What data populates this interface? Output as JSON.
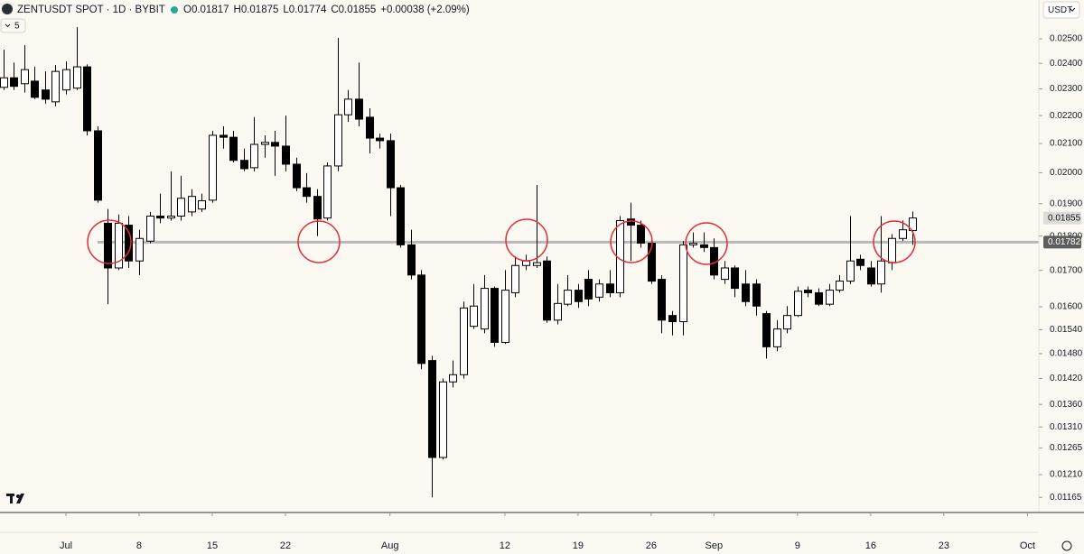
{
  "chart_data": {
    "type": "candlestick",
    "title": "ZENTUSDT SPOT · 1D · BYBIT",
    "ohlc_labels": [
      "O0.01817",
      "H0.01875",
      "L0.01774",
      "C0.01855",
      "+0.00038 (+2.09%)"
    ],
    "interval_badge": "5",
    "currency": "USDT",
    "log_scale": true,
    "grid": false,
    "up_color": "#ffffff",
    "down_color": "#000000",
    "x": [
      0,
      1,
      2,
      3,
      4,
      5,
      6,
      7,
      8,
      9,
      10,
      11,
      12,
      13,
      14,
      15,
      16,
      17,
      18,
      19,
      20,
      21,
      22,
      23,
      24,
      25,
      26,
      27,
      28,
      29,
      30,
      31,
      32,
      33,
      34,
      35,
      36,
      37,
      38,
      39,
      40,
      41,
      42,
      43,
      44,
      45,
      46,
      47,
      48,
      49,
      50,
      51,
      52,
      53,
      54,
      55,
      56,
      57,
      58,
      59,
      60,
      61,
      62,
      63,
      64,
      65,
      66,
      67,
      68,
      69,
      70,
      71,
      72,
      73,
      74,
      75,
      76,
      77,
      78,
      79,
      80,
      81,
      82,
      83,
      84,
      85,
      86,
      87
    ],
    "open": [
      0.02306,
      0.02343,
      0.0232,
      0.0233,
      0.02296,
      0.02251,
      0.02296,
      0.02303,
      0.02386,
      0.02145,
      0.01839,
      0.01707,
      0.01833,
      0.01727,
      0.01785,
      0.01861,
      0.01855,
      0.01861,
      0.01874,
      0.01883,
      0.01911,
      0.02129,
      0.02122,
      0.02042,
      0.02017,
      0.02097,
      0.02104,
      0.02091,
      0.02029,
      0.01951,
      0.01923,
      0.01855,
      0.02023,
      0.02203,
      0.02261,
      0.02194,
      0.02119,
      0.0211,
      0.01951,
      0.01774,
      0.01687,
      0.01463,
      0.01245,
      0.01412,
      0.01429,
      0.01549,
      0.01542,
      0.0165,
      0.01508,
      0.01638,
      0.01714,
      0.01714,
      0.01727,
      0.01565,
      0.01607,
      0.01645,
      0.01675,
      0.01626,
      0.01662,
      0.01638,
      0.01852,
      0.01833,
      0.01779,
      0.01675,
      0.01577,
      0.01561,
      0.01774,
      0.01774,
      0.01766,
      0.01675,
      0.01707,
      0.01662,
      0.01662,
      0.01582,
      0.01497,
      0.01542,
      0.01577,
      0.01645,
      0.01638,
      0.01607,
      0.01645,
      0.0167,
      0.01732,
      0.01707,
      0.01662,
      0.01722,
      0.01793,
      0.01817
    ],
    "high": [
      0.02455,
      0.02403,
      0.02474,
      0.02386,
      0.02368,
      0.02393,
      0.02408,
      0.02549,
      0.02396,
      0.02161,
      0.01883,
      0.01866,
      0.01861,
      0.01819,
      0.01874,
      0.01932,
      0.02005,
      0.0199,
      0.01946,
      0.01932,
      0.02145,
      0.02161,
      0.02145,
      0.02082,
      0.02194,
      0.02129,
      0.02145,
      0.022,
      0.02051,
      0.01999,
      0.01946,
      0.02035,
      0.02504,
      0.02296,
      0.02403,
      0.02227,
      0.02135,
      0.02135,
      0.0196,
      0.01819,
      0.01701,
      0.01475,
      0.0142,
      0.01463,
      0.01614,
      0.01662,
      0.01687,
      0.01655,
      0.01701,
      0.0174,
      0.01745,
      0.0196,
      0.0174,
      0.01662,
      0.01687,
      0.01662,
      0.01701,
      0.01675,
      0.01701,
      0.01861,
      0.01903,
      0.01847,
      0.018,
      0.01687,
      0.01589,
      0.01785,
      0.01811,
      0.01811,
      0.01793,
      0.01727,
      0.01714,
      0.01701,
      0.01675,
      0.01589,
      0.01565,
      0.01602,
      0.01655,
      0.01655,
      0.0165,
      0.01662,
      0.01687,
      0.01861,
      0.01745,
      0.01727,
      0.01861,
      0.01806,
      0.01847,
      0.01875
    ],
    "low": [
      0.02296,
      0.02296,
      0.02286,
      0.02261,
      0.02244,
      0.02234,
      0.02279,
      0.02296,
      0.02129,
      0.01903,
      0.01607,
      0.01701,
      0.01707,
      0.01687,
      0.01779,
      0.01839,
      0.01847,
      0.01847,
      0.01861,
      0.01874,
      0.01903,
      0.02082,
      0.02035,
      0.02005,
      0.02005,
      0.02051,
      0.0199,
      0.02005,
      0.0194,
      0.01903,
      0.018,
      0.01847,
      0.02005,
      0.02177,
      0.02161,
      0.02066,
      0.02082,
      0.01861,
      0.01766,
      0.01675,
      0.01442,
      0.01165,
      0.01241,
      0.01399,
      0.0142,
      0.01542,
      0.01531,
      0.01497,
      0.01504,
      0.01626,
      0.01701,
      0.01707,
      0.01558,
      0.01554,
      0.01602,
      0.01597,
      0.01602,
      0.01614,
      0.01626,
      0.01626,
      0.01727,
      0.01766,
      0.01662,
      0.01531,
      0.01526,
      0.01526,
      0.01766,
      0.01753,
      0.01675,
      0.01662,
      0.01626,
      0.01602,
      0.01577,
      0.01468,
      0.01486,
      0.01531,
      0.01573,
      0.01626,
      0.01602,
      0.01602,
      0.01638,
      0.01662,
      0.01701,
      0.01655,
      0.01638,
      0.01701,
      0.01785,
      0.01774
    ],
    "close": [
      0.02343,
      0.0231,
      0.02375,
      0.02268,
      0.02261,
      0.02368,
      0.02375,
      0.02386,
      0.02145,
      0.01911,
      0.01707,
      0.01839,
      0.01727,
      0.01793,
      0.01861,
      0.01855,
      0.01861,
      0.01917,
      0.01923,
      0.01909,
      0.02129,
      0.02122,
      0.02042,
      0.02014,
      0.02097,
      0.02104,
      0.02091,
      0.02029,
      0.01951,
      0.01923,
      0.01852,
      0.02023,
      0.02203,
      0.02261,
      0.02187,
      0.02119,
      0.0211,
      0.01951,
      0.01774,
      0.01687,
      0.01456,
      0.01245,
      0.01412,
      0.01429,
      0.01597,
      0.01602,
      0.0165,
      0.01508,
      0.01645,
      0.01714,
      0.01727,
      0.01722,
      0.01565,
      0.01609,
      0.01645,
      0.01614,
      0.01621,
      0.01662,
      0.01638,
      0.01847,
      0.01833,
      0.01779,
      0.0167,
      0.01565,
      0.01561,
      0.01774,
      0.01779,
      0.01766,
      0.01687,
      0.01707,
      0.0165,
      0.01614,
      0.01602,
      0.01497,
      0.01542,
      0.01577,
      0.01642,
      0.01638,
      0.01607,
      0.01645,
      0.0167,
      0.01727,
      0.01714,
      0.01662,
      0.01727,
      0.01793,
      0.01819,
      0.01855
    ],
    "hline": 0.01782,
    "last_price": 0.01855,
    "xlim": [
      -0.31,
      99.09
    ],
    "ylim": [
      0.01136,
      0.02667
    ],
    "xticks": [
      {
        "value": 6,
        "label": "Jul"
      },
      {
        "value": 13,
        "label": "8"
      },
      {
        "value": 20,
        "label": "15"
      },
      {
        "value": 27,
        "label": "22"
      },
      {
        "value": 37,
        "label": "Aug"
      },
      {
        "value": 48,
        "label": "12"
      },
      {
        "value": 55,
        "label": "19"
      },
      {
        "value": 62,
        "label": "26"
      },
      {
        "value": 68,
        "label": "Sep"
      },
      {
        "value": 76,
        "label": "9"
      },
      {
        "value": 83,
        "label": "16"
      },
      {
        "value": 90,
        "label": "23"
      },
      {
        "value": 98,
        "label": "Oct"
      }
    ],
    "yticks": [
      {
        "value": 0.025,
        "label": "0.02500"
      },
      {
        "value": 0.024,
        "label": "0.02400"
      },
      {
        "value": 0.023,
        "label": "0.02300"
      },
      {
        "value": 0.022,
        "label": "0.02200"
      },
      {
        "value": 0.021,
        "label": "0.02100"
      },
      {
        "value": 0.02,
        "label": "0.02000"
      },
      {
        "value": 0.019,
        "label": "0.01900"
      },
      {
        "value": 0.018,
        "label": "0.01800"
      },
      {
        "value": 0.017,
        "label": "0.01700"
      },
      {
        "value": 0.016,
        "label": "0.01600"
      },
      {
        "value": 0.0154,
        "label": "0.01540"
      },
      {
        "value": 0.0148,
        "label": "0.01480"
      },
      {
        "value": 0.0142,
        "label": "0.01420"
      },
      {
        "value": 0.0136,
        "label": "0.01360"
      },
      {
        "value": 0.0131,
        "label": "0.01310"
      },
      {
        "value": 0.01265,
        "label": "0.01265"
      },
      {
        "value": 0.0121,
        "label": "0.01210"
      },
      {
        "value": 0.01165,
        "label": "0.01165"
      }
    ]
  }
}
